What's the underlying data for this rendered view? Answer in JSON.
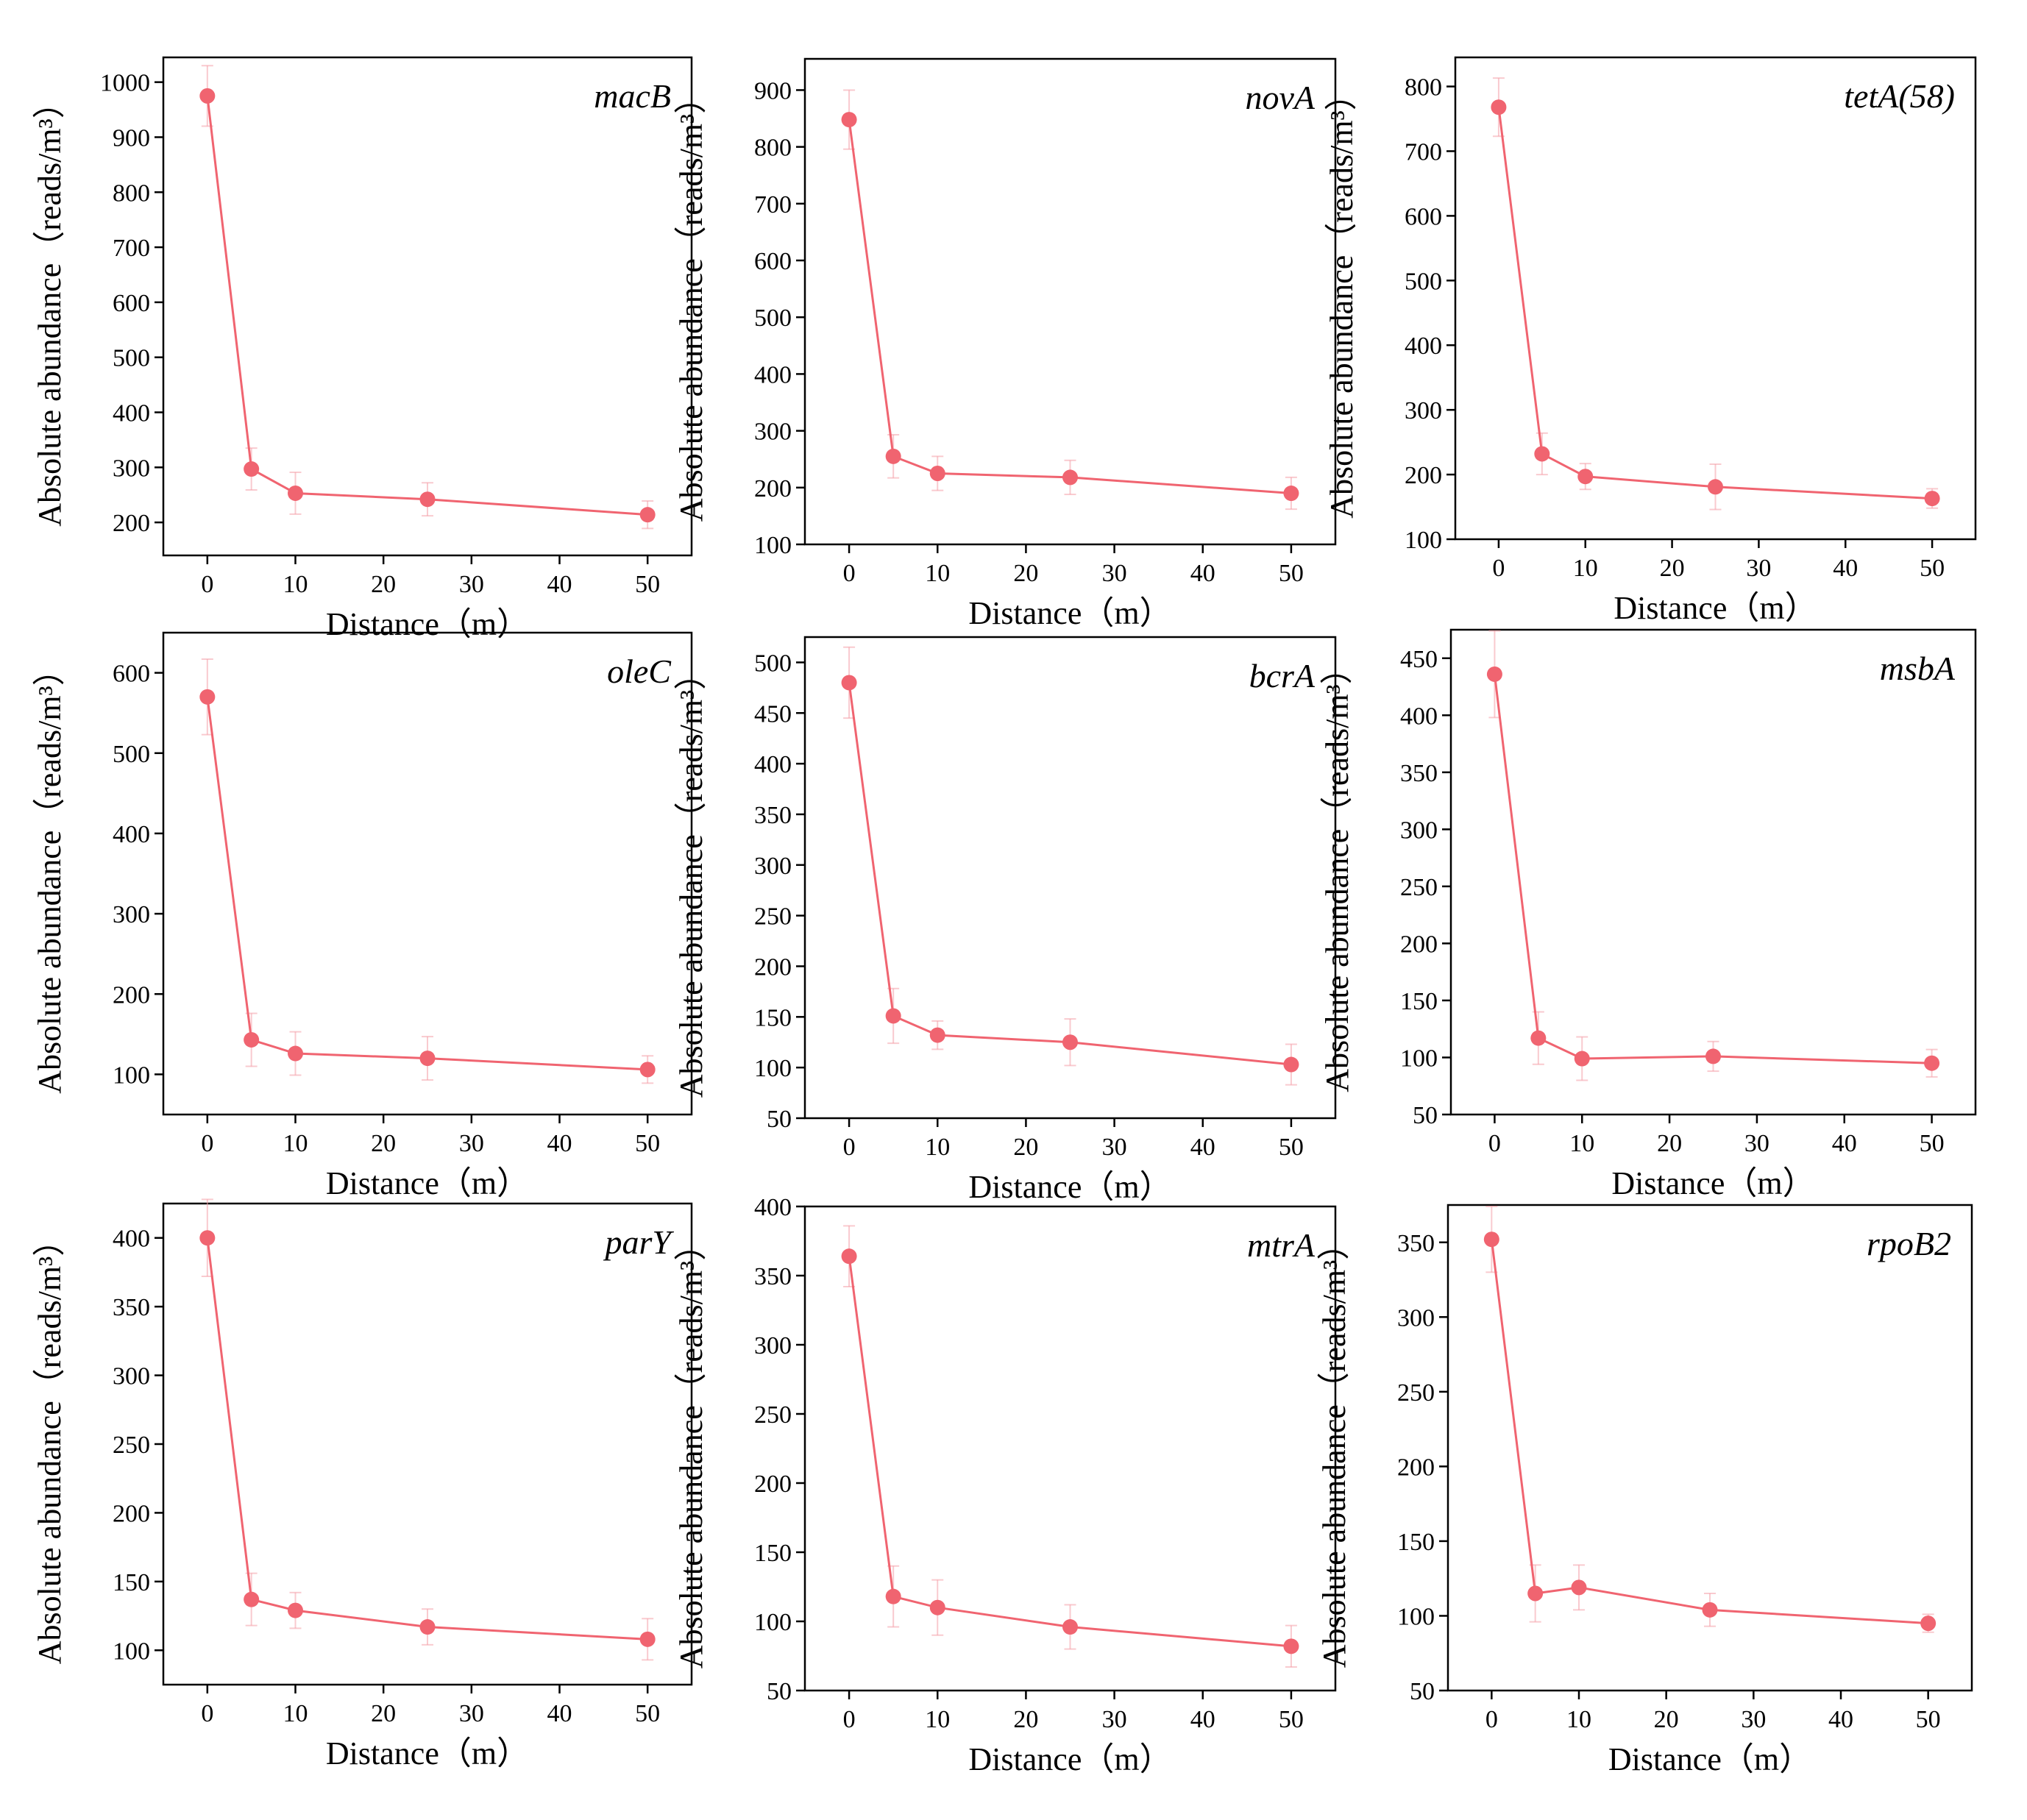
{
  "figure": {
    "series_color": "#f06470",
    "error_color": "#f5a0a8"
  },
  "chart_data": [
    {
      "type": "line",
      "gene": "macB",
      "xlabel": "Distance（m）",
      "ylabel": "Absolute abundance（reads/m³）",
      "x": [
        0,
        5,
        10,
        25,
        50
      ],
      "values": [
        975,
        297,
        253,
        242,
        214
      ],
      "errors": [
        55,
        38,
        38,
        30,
        25
      ],
      "xticks": [
        0,
        10,
        20,
        30,
        40,
        50
      ],
      "xlim": [
        -5,
        55
      ],
      "yticks": [
        200,
        300,
        400,
        500,
        600,
        700,
        800,
        900,
        1000
      ],
      "ylim": [
        140,
        1045
      ]
    },
    {
      "type": "line",
      "gene": "novA",
      "xlabel": "Distance（m）",
      "ylabel": "Absolute abundance（reads/m³）",
      "x": [
        0,
        5,
        10,
        25,
        50
      ],
      "values": [
        848,
        255,
        225,
        218,
        190
      ],
      "errors": [
        52,
        38,
        30,
        30,
        28
      ],
      "xticks": [
        0,
        10,
        20,
        30,
        40,
        50
      ],
      "xlim": [
        -5,
        55
      ],
      "yticks": [
        100,
        200,
        300,
        400,
        500,
        600,
        700,
        800,
        900
      ],
      "ylim": [
        100,
        955
      ]
    },
    {
      "type": "line",
      "gene": "tetA(58)",
      "xlabel": "Distance（m）",
      "ylabel": "Absolute abundance（reads/m³）",
      "x": [
        0,
        5,
        10,
        25,
        50
      ],
      "values": [
        768,
        232,
        197,
        181,
        163
      ],
      "errors": [
        45,
        32,
        20,
        35,
        15
      ],
      "xticks": [
        0,
        10,
        20,
        30,
        40,
        50
      ],
      "xlim": [
        -5,
        55
      ],
      "yticks": [
        100,
        200,
        300,
        400,
        500,
        600,
        700,
        800
      ],
      "ylim": [
        100,
        845
      ]
    },
    {
      "type": "line",
      "gene": "oleC",
      "xlabel": "Distance（m）",
      "ylabel": "Absolute abundance（reads/m³）",
      "x": [
        0,
        5,
        10,
        25,
        50
      ],
      "values": [
        570,
        143,
        126,
        120,
        106
      ],
      "errors": [
        47,
        33,
        27,
        27,
        17
      ],
      "xticks": [
        0,
        10,
        20,
        30,
        40,
        50
      ],
      "xlim": [
        -5,
        55
      ],
      "yticks": [
        100,
        200,
        300,
        400,
        500,
        600
      ],
      "ylim": [
        50,
        650
      ]
    },
    {
      "type": "line",
      "gene": "bcrA",
      "xlabel": "Distance（m）",
      "ylabel": "Absolute abundance（reads/m³）",
      "x": [
        0,
        5,
        10,
        25,
        50
      ],
      "values": [
        480,
        151,
        132,
        125,
        103
      ],
      "errors": [
        35,
        27,
        14,
        23,
        20
      ],
      "xticks": [
        0,
        10,
        20,
        30,
        40,
        50
      ],
      "xlim": [
        -5,
        55
      ],
      "yticks": [
        50,
        100,
        150,
        200,
        250,
        300,
        350,
        400,
        450,
        500
      ],
      "ylim": [
        50,
        525
      ]
    },
    {
      "type": "line",
      "gene": "msbA",
      "xlabel": "Distance（m）",
      "ylabel": "Absolute abundance（reads/m³）",
      "x": [
        0,
        5,
        10,
        25,
        50
      ],
      "values": [
        436,
        117,
        99,
        101,
        95
      ],
      "errors": [
        38,
        23,
        19,
        13,
        12
      ],
      "xticks": [
        0,
        10,
        20,
        30,
        40,
        50
      ],
      "xlim": [
        -5,
        55
      ],
      "yticks": [
        50,
        100,
        150,
        200,
        250,
        300,
        350,
        400,
        450
      ],
      "ylim": [
        50,
        475
      ]
    },
    {
      "type": "line",
      "gene": "parY",
      "xlabel": "Distance（m）",
      "ylabel": "Absolute abundance（reads/m³）",
      "x": [
        0,
        5,
        10,
        25,
        50
      ],
      "values": [
        400,
        137,
        129,
        117,
        108
      ],
      "errors": [
        28,
        19,
        13,
        13,
        15
      ],
      "xticks": [
        0,
        10,
        20,
        30,
        40,
        50
      ],
      "xlim": [
        -5,
        55
      ],
      "yticks": [
        100,
        150,
        200,
        250,
        300,
        350,
        400
      ],
      "ylim": [
        75,
        425
      ]
    },
    {
      "type": "line",
      "gene": "mtrA",
      "xlabel": "Distance（m）",
      "ylabel": "Absolute abundance（reads/m³）",
      "x": [
        0,
        5,
        10,
        25,
        50
      ],
      "values": [
        364,
        118,
        110,
        96,
        82
      ],
      "errors": [
        22,
        22,
        20,
        16,
        15
      ],
      "xticks": [
        0,
        10,
        20,
        30,
        40,
        50
      ],
      "xlim": [
        -5,
        55
      ],
      "yticks": [
        50,
        100,
        150,
        200,
        250,
        300,
        350,
        400
      ],
      "ylim": [
        50,
        400
      ]
    },
    {
      "type": "line",
      "gene": "rpoB2",
      "xlabel": "Distance（m）",
      "ylabel": "Absolute abundance（reads/m³）",
      "x": [
        0,
        5,
        10,
        25,
        50
      ],
      "values": [
        352,
        115,
        119,
        104,
        95
      ],
      "errors": [
        22,
        19,
        15,
        11,
        6
      ],
      "xticks": [
        0,
        10,
        20,
        30,
        40,
        50
      ],
      "xlim": [
        -5,
        55
      ],
      "yticks": [
        50,
        100,
        150,
        200,
        250,
        300,
        350
      ],
      "ylim": [
        50,
        375
      ]
    }
  ]
}
